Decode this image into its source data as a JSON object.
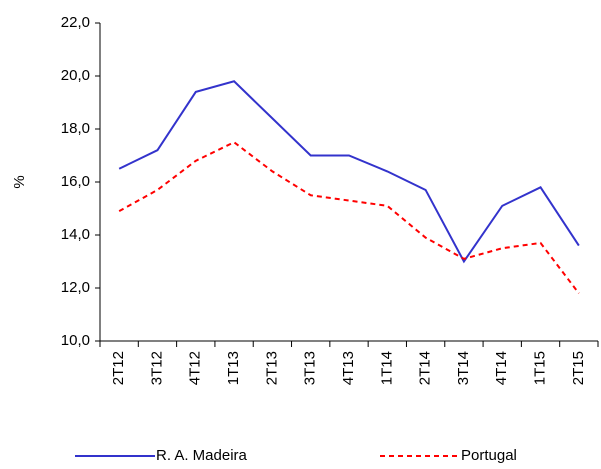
{
  "chart_data": {
    "type": "line",
    "ylabel": "%",
    "categories": [
      "2T12",
      "3T12",
      "4T12",
      "1T13",
      "2T13",
      "3T13",
      "4T13",
      "1T14",
      "2T14",
      "3T14",
      "4T14",
      "1T15",
      "2T15"
    ],
    "series": [
      {
        "name": "R. A. Madeira",
        "color": "#3333cc",
        "dash": "solid",
        "values": [
          16.5,
          17.2,
          19.4,
          19.8,
          18.4,
          17.0,
          17.0,
          16.4,
          15.7,
          13.0,
          15.1,
          15.8,
          13.6
        ]
      },
      {
        "name": "Portugal",
        "color": "#ff0000",
        "dash": "dashed",
        "values": [
          14.9,
          15.7,
          16.8,
          17.5,
          16.4,
          15.5,
          15.3,
          15.1,
          13.9,
          13.1,
          13.5,
          13.7,
          11.8
        ]
      }
    ],
    "ylim": [
      10,
      22
    ],
    "yticks": [
      {
        "value": 10,
        "label": "10,0"
      },
      {
        "value": 12,
        "label": "12,0"
      },
      {
        "value": 14,
        "label": "14,0"
      },
      {
        "value": 16,
        "label": "16,0"
      },
      {
        "value": 18,
        "label": "18,0"
      },
      {
        "value": 20,
        "label": "20,0"
      },
      {
        "value": 22,
        "label": "22,0"
      }
    ],
    "grid": false,
    "legend": "bottom"
  }
}
